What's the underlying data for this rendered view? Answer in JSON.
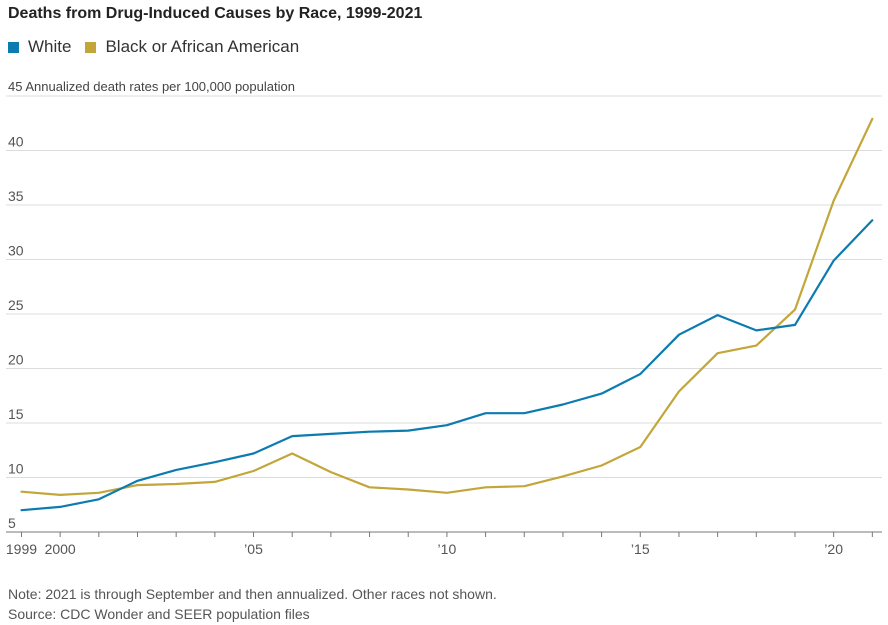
{
  "chart_data": {
    "type": "line",
    "title": "Deaths from Drug-Induced Causes by Race, 1999-2021",
    "ylabel_top": "45 Annualized death rates per 100,000 population",
    "ylim": [
      5,
      45
    ],
    "xlim": [
      1998.6,
      2021.25
    ],
    "y_ticks": [
      {
        "value": 5,
        "label": "5"
      },
      {
        "value": 10,
        "label": "10"
      },
      {
        "value": 15,
        "label": "15"
      },
      {
        "value": 20,
        "label": "20"
      },
      {
        "value": 25,
        "label": "25"
      },
      {
        "value": 30,
        "label": "30"
      },
      {
        "value": 35,
        "label": "35"
      },
      {
        "value": 40,
        "label": "40"
      }
    ],
    "x_ticks": [
      {
        "value": 1999,
        "label": "1999"
      },
      {
        "value": 2000,
        "label": "2000"
      },
      {
        "value": 2005,
        "label": "’05"
      },
      {
        "value": 2010,
        "label": "’10"
      },
      {
        "value": 2015,
        "label": "’15"
      },
      {
        "value": 2020,
        "label": "’20"
      }
    ],
    "x": [
      1999,
      2000,
      2001,
      2002,
      2003,
      2004,
      2005,
      2006,
      2007,
      2008,
      2009,
      2010,
      2011,
      2012,
      2013,
      2014,
      2015,
      2016,
      2017,
      2018,
      2019,
      2020,
      2021
    ],
    "series": [
      {
        "name": "White",
        "color": "#0c7bb0",
        "values": [
          7.0,
          7.3,
          8.0,
          9.7,
          10.7,
          11.4,
          12.2,
          13.8,
          14.0,
          14.2,
          14.3,
          14.8,
          15.9,
          15.9,
          16.7,
          17.7,
          19.5,
          23.1,
          24.9,
          23.5,
          24.0,
          29.9,
          33.6
        ]
      },
      {
        "name": "Black or African American",
        "color": "#c3a63a",
        "values": [
          8.7,
          8.4,
          8.6,
          9.3,
          9.4,
          9.6,
          10.6,
          12.2,
          10.5,
          9.1,
          8.9,
          8.6,
          9.1,
          9.2,
          10.1,
          11.1,
          12.8,
          17.9,
          21.4,
          22.1,
          25.4,
          35.4,
          42.9
        ]
      }
    ]
  },
  "notes": {
    "note": "Note: 2021 is through September and then annualized. Other races not shown.",
    "source": "Source: CDC Wonder and SEER population files"
  }
}
